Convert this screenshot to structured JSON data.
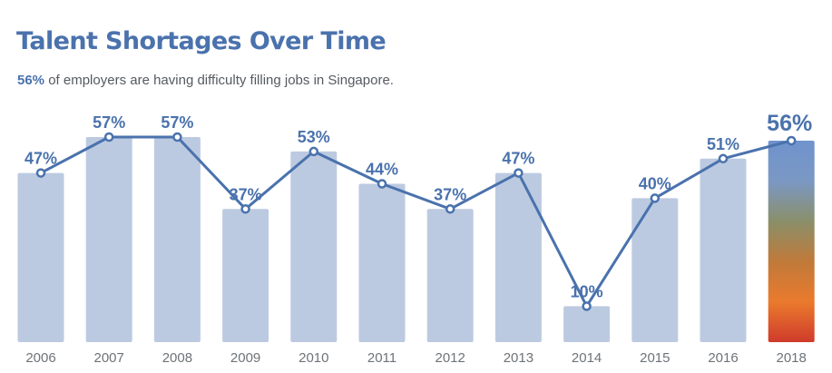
{
  "header": {
    "title": "Talent Shortages Over Time",
    "subtitle_highlight": "56%",
    "subtitle_rest": " of employers are having difficulty filling jobs in Singapore."
  },
  "colors": {
    "bar": "#bccae1",
    "line": "#4a72ad",
    "label": "#4a72ad",
    "axis_text": "#6e7378",
    "highlight_gradient": [
      "#6f93cc",
      "#7b98c4",
      "#8a8f6a",
      "#c07a3a",
      "#ea7a2d",
      "#cf3b2b"
    ]
  },
  "chart_data": {
    "type": "bar",
    "categories": [
      "2006",
      "2007",
      "2008",
      "2009",
      "2010",
      "2011",
      "2012",
      "2013",
      "2014",
      "2015",
      "2016",
      "2018"
    ],
    "values": [
      47,
      57,
      57,
      37,
      53,
      44,
      37,
      47,
      10,
      40,
      51,
      56
    ],
    "data_labels": [
      "47%",
      "57%",
      "57%",
      "37%",
      "53%",
      "44%",
      "37%",
      "47%",
      "10%",
      "40%",
      "51%",
      "56%"
    ],
    "title": "Talent Shortages Over Time",
    "xlabel": "",
    "ylabel": "",
    "ylim": [
      0,
      57
    ],
    "highlight_category": "2018",
    "grid": false,
    "legend": "none",
    "overlay": "line with circle markers connecting the bar values"
  }
}
